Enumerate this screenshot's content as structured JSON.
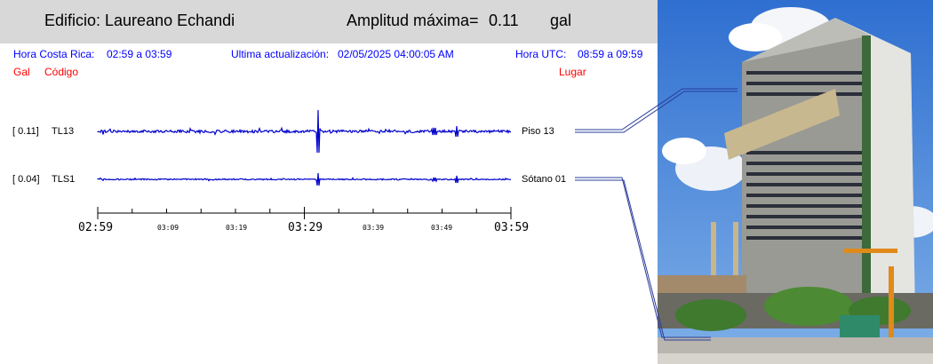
{
  "header": {
    "building": "Edificio: Laureano Echandi",
    "amp_label": "Amplitud máxima=",
    "amp_value": "0.11",
    "amp_unit": "gal"
  },
  "info": {
    "hora_cr_label": "Hora Costa Rica:",
    "hora_cr_value": "02:59 a 03:59",
    "update_label": "Ultima actualización:",
    "update_value": "02/05/2025 04:00:05 AM",
    "hora_utc_label": "Hora UTC:",
    "hora_utc_value": "08:59 a 09:59"
  },
  "columns": {
    "gal": "Gal",
    "codigo": "Código",
    "lugar": "Lugar"
  },
  "channels": [
    {
      "gal": "[ 0.11]",
      "code": "TL13",
      "place": "Piso 13",
      "peak": 0.11
    },
    {
      "gal": "[ 0.04]",
      "code": "TLS1",
      "place": "Sótano 01",
      "peak": 0.04
    }
  ],
  "time_axis": {
    "major": [
      "02:59",
      "03:29",
      "03:59"
    ],
    "minor": [
      "03:09",
      "03:19",
      "03:39",
      "03:49"
    ]
  },
  "colors": {
    "trace": "#0000cc",
    "label_blue": "#0000ff",
    "label_red": "#ff0000",
    "header_bg": "#d8d8d8"
  }
}
